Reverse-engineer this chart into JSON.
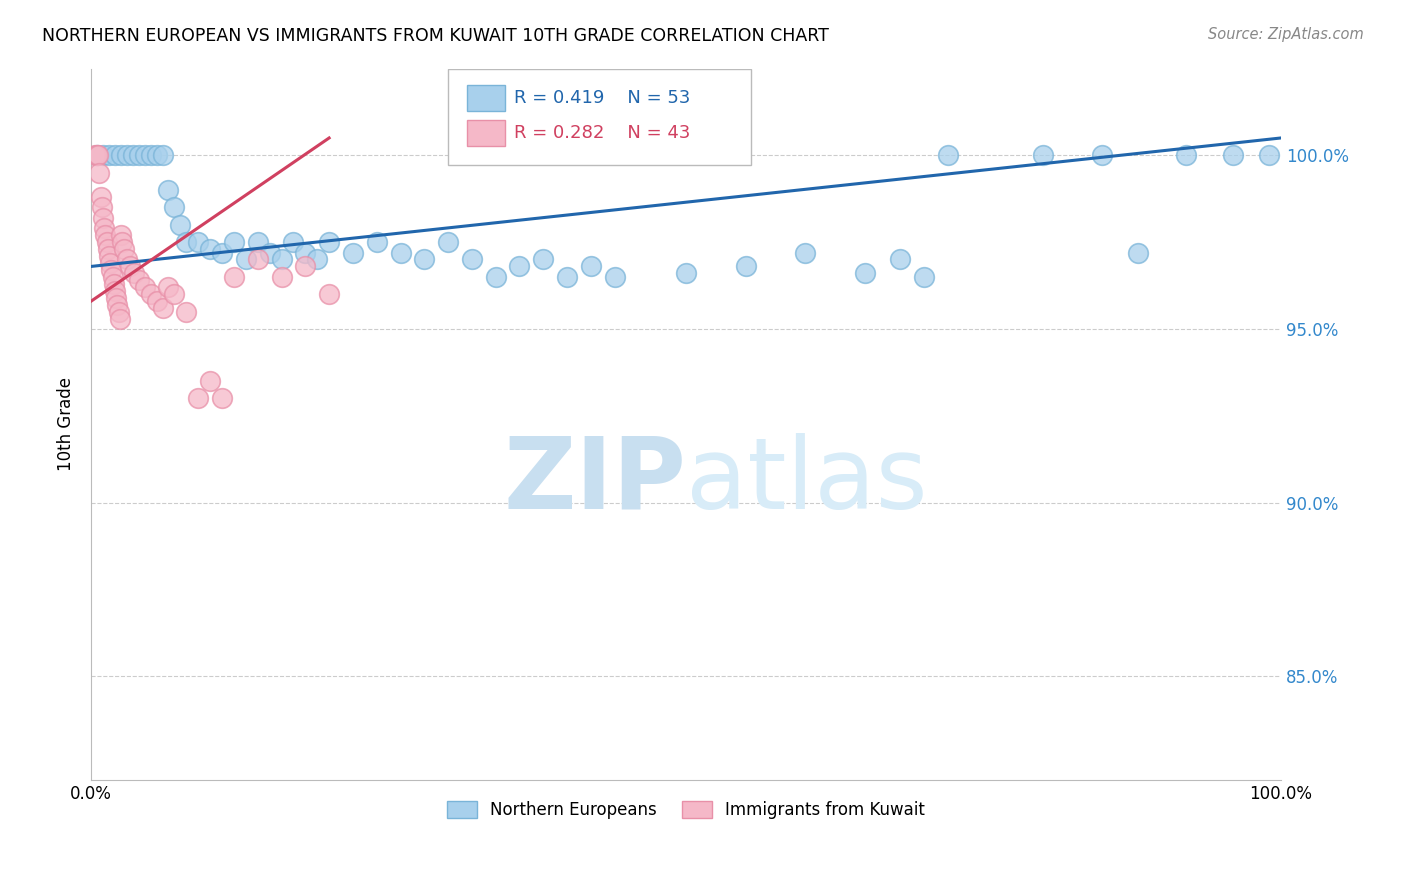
{
  "title": "NORTHERN EUROPEAN VS IMMIGRANTS FROM KUWAIT 10TH GRADE CORRELATION CHART",
  "source": "Source: ZipAtlas.com",
  "ylabel": "10th Grade",
  "ytick_labels": [
    "100.0%",
    "95.0%",
    "90.0%",
    "85.0%"
  ],
  "ytick_values": [
    1.0,
    0.95,
    0.9,
    0.85
  ],
  "xlim": [
    0.0,
    1.0
  ],
  "ylim": [
    0.82,
    1.025
  ],
  "legend_r1": "R = 0.419",
  "legend_n1": "N = 53",
  "legend_r2": "R = 0.282",
  "legend_n2": "N = 43",
  "blue_color": "#a8d0ec",
  "pink_color": "#f5b8c8",
  "blue_edge_color": "#7ab4d8",
  "pink_edge_color": "#e890a8",
  "blue_line_color": "#2166ac",
  "pink_line_color": "#d04060",
  "watermark_zip_color": "#c8dff0",
  "watermark_atlas_color": "#d8ecf8",
  "blue_scatter_x": [
    0.005,
    0.01,
    0.015,
    0.02,
    0.025,
    0.03,
    0.035,
    0.04,
    0.045,
    0.05,
    0.055,
    0.06,
    0.065,
    0.07,
    0.075,
    0.08,
    0.09,
    0.1,
    0.11,
    0.12,
    0.13,
    0.14,
    0.15,
    0.16,
    0.17,
    0.18,
    0.19,
    0.2,
    0.22,
    0.24,
    0.26,
    0.28,
    0.3,
    0.32,
    0.34,
    0.36,
    0.38,
    0.4,
    0.42,
    0.44,
    0.5,
    0.55,
    0.6,
    0.65,
    0.68,
    0.7,
    0.72,
    0.8,
    0.85,
    0.88,
    0.92,
    0.96,
    0.99
  ],
  "blue_scatter_y": [
    1.0,
    1.0,
    1.0,
    1.0,
    1.0,
    1.0,
    1.0,
    1.0,
    1.0,
    1.0,
    1.0,
    1.0,
    0.99,
    0.985,
    0.98,
    0.975,
    0.975,
    0.973,
    0.972,
    0.975,
    0.97,
    0.975,
    0.972,
    0.97,
    0.975,
    0.972,
    0.97,
    0.975,
    0.972,
    0.975,
    0.972,
    0.97,
    0.975,
    0.97,
    0.965,
    0.968,
    0.97,
    0.965,
    0.968,
    0.965,
    0.966,
    0.968,
    0.972,
    0.966,
    0.97,
    0.965,
    1.0,
    1.0,
    1.0,
    0.972,
    1.0,
    1.0,
    1.0
  ],
  "pink_scatter_x": [
    0.003,
    0.005,
    0.006,
    0.007,
    0.008,
    0.009,
    0.01,
    0.011,
    0.012,
    0.013,
    0.014,
    0.015,
    0.016,
    0.017,
    0.018,
    0.019,
    0.02,
    0.021,
    0.022,
    0.023,
    0.024,
    0.025,
    0.026,
    0.028,
    0.03,
    0.033,
    0.036,
    0.04,
    0.045,
    0.05,
    0.055,
    0.06,
    0.065,
    0.07,
    0.08,
    0.09,
    0.1,
    0.11,
    0.12,
    0.14,
    0.16,
    0.18,
    0.2
  ],
  "pink_scatter_y": [
    1.0,
    1.0,
    1.0,
    0.995,
    0.988,
    0.985,
    0.982,
    0.979,
    0.977,
    0.975,
    0.973,
    0.971,
    0.969,
    0.967,
    0.965,
    0.963,
    0.961,
    0.959,
    0.957,
    0.955,
    0.953,
    0.977,
    0.975,
    0.973,
    0.97,
    0.968,
    0.966,
    0.964,
    0.962,
    0.96,
    0.958,
    0.956,
    0.962,
    0.96,
    0.955,
    0.93,
    0.935,
    0.93,
    0.965,
    0.97,
    0.965,
    0.968,
    0.96
  ],
  "blue_line_x0": 0.0,
  "blue_line_y0": 0.968,
  "blue_line_x1": 1.0,
  "blue_line_y1": 1.005,
  "pink_line_x0": 0.0,
  "pink_line_y0": 0.958,
  "pink_line_x1": 0.2,
  "pink_line_y1": 1.005
}
